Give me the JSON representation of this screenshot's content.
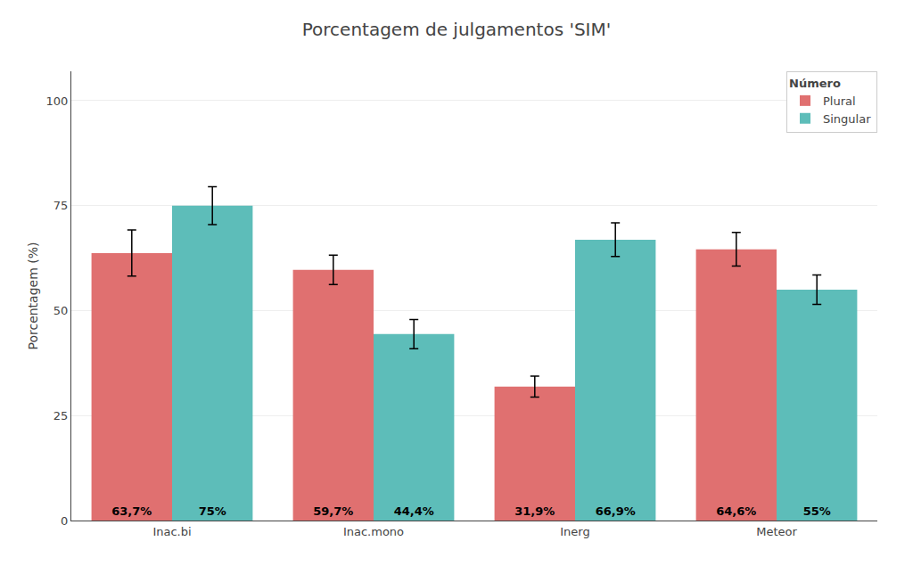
{
  "chart_data": {
    "type": "bar",
    "title": "Porcentagem de julgamentos 'SIM'",
    "ylabel": "Porcentagem (%)",
    "categories": [
      "Inac.bi",
      "Inac.mono",
      "Inerg",
      "Meteor"
    ],
    "series": [
      {
        "name": "Plural",
        "color": "#E07070",
        "values": [
          63.7,
          59.7,
          31.9,
          64.6
        ],
        "value_labels": [
          "63,7%",
          "59,7%",
          "31,9%",
          "64,6%"
        ],
        "errors": [
          5.5,
          3.5,
          2.5,
          4.0
        ]
      },
      {
        "name": "Singular",
        "color": "#5DBDB9",
        "values": [
          75.0,
          44.4,
          66.9,
          55.0
        ],
        "value_labels": [
          "75%",
          "44,4%",
          "66,9%",
          "55%"
        ],
        "errors": [
          4.5,
          3.5,
          4.0,
          3.5
        ]
      }
    ],
    "ylim": [
      0,
      107
    ],
    "yticks": [
      0,
      25,
      50,
      75,
      100
    ],
    "grid": true,
    "legend": "upper right",
    "legend_title": "Número",
    "data_labels": true
  }
}
